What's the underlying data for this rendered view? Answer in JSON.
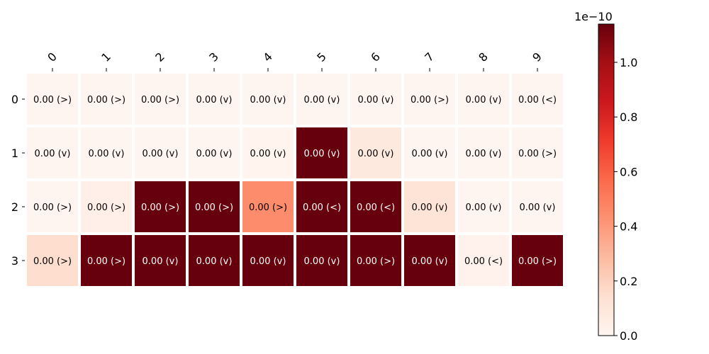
{
  "chart_data": {
    "type": "heatmap",
    "colormap": "Reds",
    "colormap_stops": [
      "#fff5f0",
      "#fee0d2",
      "#fcbba1",
      "#fc9272",
      "#fb6a4a",
      "#ef3b2c",
      "#cb181d",
      "#a50f15",
      "#67000d"
    ],
    "x_ticks": [
      "0",
      "1",
      "2",
      "3",
      "4",
      "5",
      "6",
      "7",
      "8",
      "9"
    ],
    "y_ticks": [
      "0",
      "1",
      "2",
      "3"
    ],
    "values": [
      [
        0.0,
        0.0,
        0.0,
        0.0,
        0.0,
        0.0,
        0.0,
        0.0,
        0.0,
        0.0
      ],
      [
        0.0,
        0.0,
        0.0,
        0.0,
        0.01,
        1.2,
        0.08,
        0.0,
        0.0,
        0.0
      ],
      [
        0.0,
        0.04,
        1.2,
        1.2,
        0.45,
        1.2,
        1.2,
        0.12,
        0.0,
        0.0
      ],
      [
        0.15,
        1.2,
        1.2,
        1.2,
        1.2,
        1.2,
        1.2,
        1.2,
        0.02,
        1.2
      ]
    ],
    "value_multiplier": "1e−10",
    "cell_labels": [
      [
        "0.00 (>)",
        "0.00 (>)",
        "0.00 (>)",
        "0.00 (v)",
        "0.00 (v)",
        "0.00 (v)",
        "0.00 (v)",
        "0.00 (>)",
        "0.00 (v)",
        "0.00 (<)"
      ],
      [
        "0.00 (v)",
        "0.00 (v)",
        "0.00 (v)",
        "0.00 (v)",
        "0.00 (v)",
        "0.00 (v)",
        "0.00 (v)",
        "0.00 (v)",
        "0.00 (v)",
        "0.00 (>)"
      ],
      [
        "0.00 (>)",
        "0.00 (>)",
        "0.00 (>)",
        "0.00 (>)",
        "0.00 (>)",
        "0.00 (<)",
        "0.00 (<)",
        "0.00 (v)",
        "0.00 (v)",
        "0.00 (v)"
      ],
      [
        "0.00 (>)",
        "0.00 (>)",
        "0.00 (v)",
        "0.00 (v)",
        "0.00 (v)",
        "0.00 (v)",
        "0.00 (>)",
        "0.00 (v)",
        "0.00 (<)",
        "0.00 (>)"
      ]
    ],
    "colorbar": {
      "min": 0.0,
      "max": 1.14,
      "ticks": [
        "0.0",
        "0.2",
        "0.4",
        "0.6",
        "0.8",
        "1.0"
      ],
      "tick_values": [
        0.0,
        0.2,
        0.4,
        0.6,
        0.8,
        1.0
      ],
      "offset_label": "1e−10"
    },
    "title": "",
    "xlabel": "",
    "ylabel": "",
    "x_tick_position": "top",
    "grid": false
  }
}
